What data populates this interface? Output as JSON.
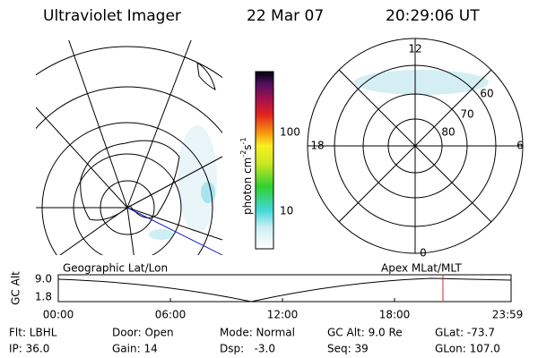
{
  "header": {
    "instrument": "Ultraviolet Imager",
    "date": "22 Mar 07",
    "time": "20:29:06 UT"
  },
  "colorbar": {
    "label": "photon cm",
    "exp1": "-2",
    "mid": "s",
    "exp2": "-1",
    "ticks": [
      "100",
      "10"
    ]
  },
  "polar": {
    "labels": [
      "12",
      "0",
      "18",
      "6",
      "60",
      "70",
      "80"
    ]
  },
  "strip": {
    "left_title": "Geographic Lat/Lon",
    "right_title": "Apex MLat/MLT",
    "ylabel": "GC Alt",
    "yticks": [
      "9.0",
      "1.8"
    ],
    "xticks": [
      "00:00",
      "06:00",
      "12:00",
      "18:00",
      "23:59"
    ]
  },
  "info": {
    "rows": [
      [
        "Flt: LBHL",
        "Door: Open",
        "Mode: Normal",
        "GC Alt: 9.0 Re",
        "GLat: -73.7"
      ],
      [
        "IP: 36.0",
        "Gain: 14",
        "Dsp:   -3.0",
        "Seq: 39",
        "GLon: 107.0"
      ]
    ]
  }
}
